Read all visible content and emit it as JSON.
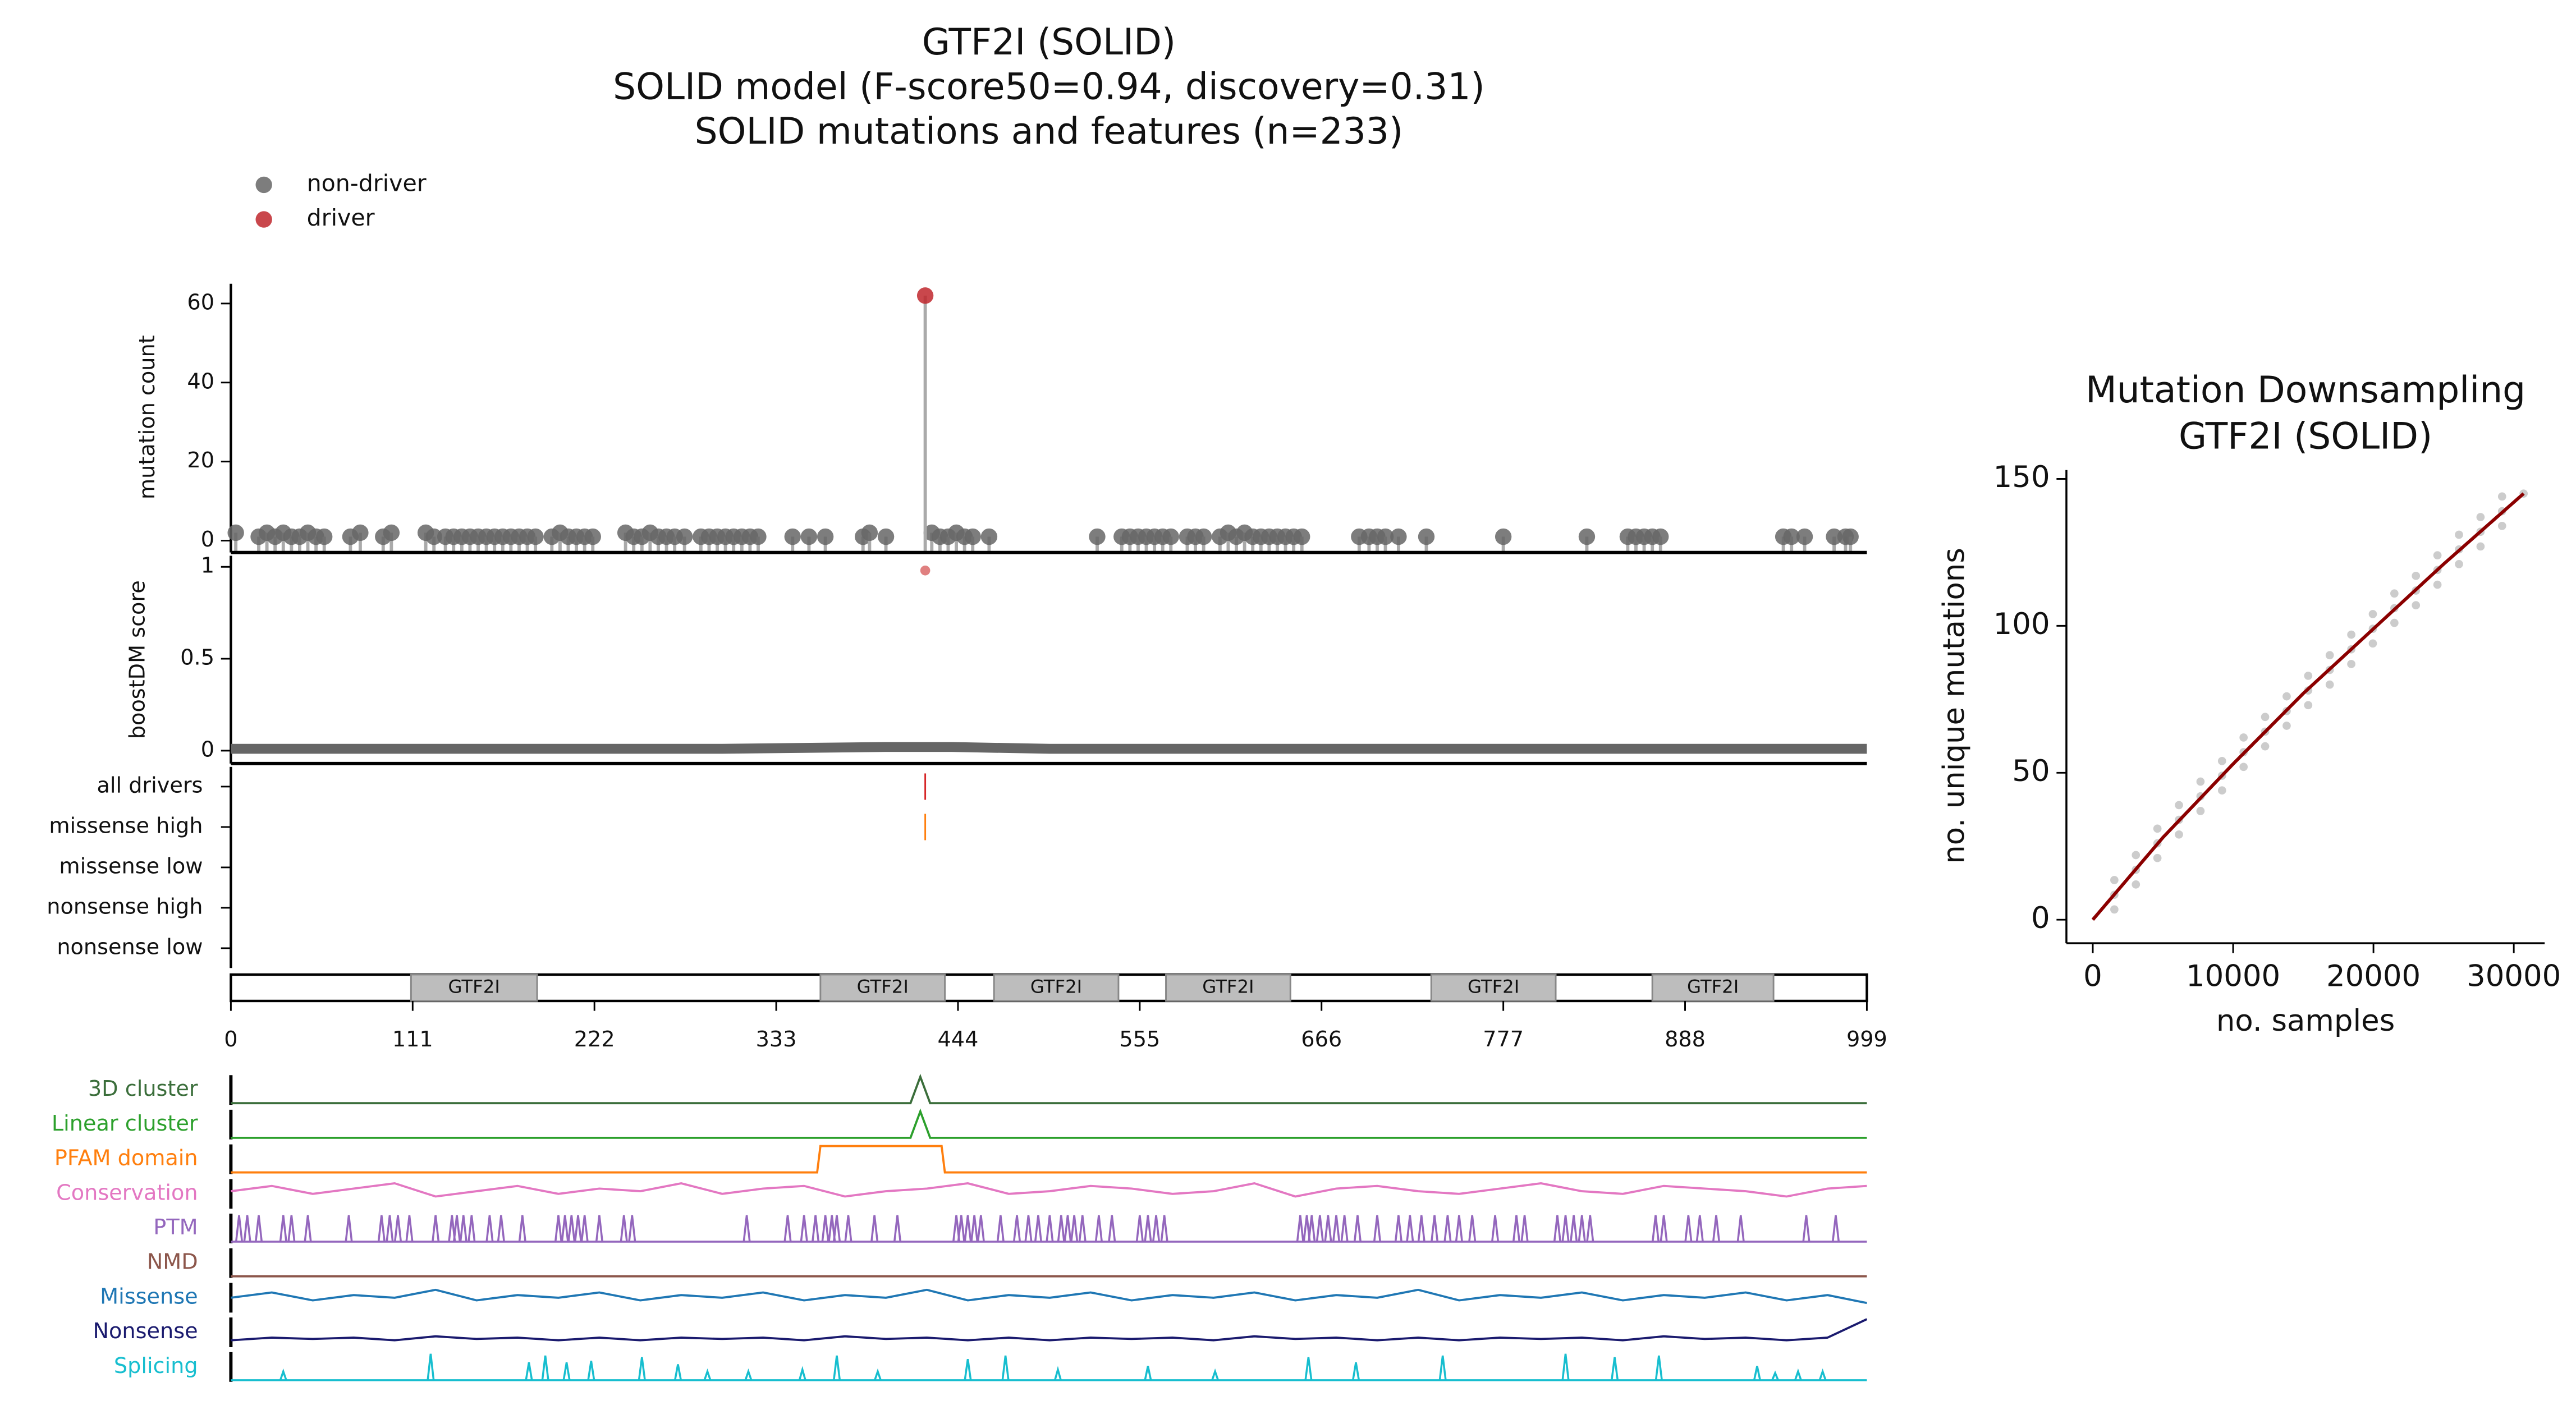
{
  "chart_data": [
    {
      "type": "lollipop",
      "title": [
        "GTF2I (SOLID)",
        "SOLID model (F-score50=0.94, discovery=0.31)",
        "SOLID mutations and features (n=233)"
      ],
      "y_label": "mutation count",
      "xlim": [
        0,
        999
      ],
      "ylim": [
        -3,
        65
      ],
      "yticks": [
        0,
        20,
        40,
        60
      ],
      "series": [
        {
          "name": "non-driver",
          "color": "#666666",
          "x": [
            3,
            17,
            22,
            27,
            32,
            37,
            42,
            47,
            52,
            57,
            73,
            79,
            93,
            98,
            119,
            124,
            131,
            136,
            141,
            146,
            151,
            156,
            161,
            166,
            171,
            176,
            181,
            186,
            196,
            201,
            206,
            211,
            216,
            221,
            241,
            246,
            251,
            256,
            261,
            266,
            271,
            277,
            287,
            292,
            297,
            302,
            307,
            312,
            317,
            322,
            343,
            353,
            363,
            386,
            390,
            400,
            428,
            433,
            438,
            443,
            448,
            453,
            463,
            529,
            544,
            549,
            554,
            559,
            564,
            569,
            574,
            584,
            589,
            594,
            604,
            609,
            614,
            619,
            624,
            629,
            634,
            639,
            644,
            649,
            654,
            689,
            695,
            700,
            705,
            713,
            730,
            777,
            828,
            853,
            858,
            863,
            868,
            873,
            948,
            953,
            961,
            979,
            986,
            989
          ],
          "values": [
            2,
            1,
            2,
            1,
            2,
            1,
            1,
            2,
            1,
            1,
            1,
            2,
            1,
            2,
            2,
            1,
            1,
            1,
            1,
            1,
            1,
            1,
            1,
            1,
            1,
            1,
            1,
            1,
            1,
            2,
            1,
            1,
            1,
            1,
            2,
            1,
            1,
            2,
            1,
            1,
            1,
            1,
            1,
            1,
            1,
            1,
            1,
            1,
            1,
            1,
            1,
            1,
            1,
            1,
            2,
            1,
            2,
            1,
            1,
            2,
            1,
            1,
            1,
            1,
            1,
            1,
            1,
            1,
            1,
            1,
            1,
            1,
            1,
            1,
            1,
            2,
            1,
            2,
            1,
            1,
            1,
            1,
            1,
            1,
            1,
            1,
            1,
            1,
            1,
            1,
            1,
            1,
            1,
            1,
            1,
            1,
            1,
            1,
            1,
            1,
            1,
            1,
            1,
            1
          ]
        },
        {
          "name": "driver",
          "color": "#c0272d",
          "x": [
            424
          ],
          "values": [
            62
          ]
        }
      ]
    },
    {
      "type": "score",
      "y_label": "boostDM score",
      "xlim": [
        0,
        999
      ],
      "ylim": [
        -0.07,
        1.06
      ],
      "yticks": [
        0,
        0.5,
        1
      ],
      "series": [
        {
          "marker": "band",
          "color": "#666666",
          "x": [
            0,
            100,
            200,
            300,
            350,
            400,
            420,
            440,
            500,
            600,
            700,
            800,
            900,
            999
          ],
          "values": [
            0.01,
            0.01,
            0.01,
            0.01,
            0.015,
            0.02,
            0.02,
            0.02,
            0.01,
            0.01,
            0.01,
            0.01,
            0.01,
            0.01
          ]
        },
        {
          "marker": "dot",
          "color": "#e08080",
          "x": [
            424
          ],
          "values": [
            0.98
          ]
        }
      ]
    },
    {
      "type": "tracks",
      "xlim": [
        0,
        999
      ],
      "categories": [
        "all drivers",
        "missense high",
        "missense low",
        "nonsense high",
        "nonsense low"
      ],
      "series": [
        {
          "color": "#d62728",
          "x": [
            424
          ]
        },
        {
          "color": "#ff7f0e",
          "x": [
            424
          ]
        },
        {
          "x": []
        },
        {
          "x": []
        },
        {
          "x": []
        }
      ]
    },
    {
      "type": "domains",
      "xlim": [
        0,
        999
      ],
      "xticks": [
        0,
        111,
        222,
        333,
        444,
        555,
        666,
        777,
        888,
        999
      ],
      "labels": [
        "GTF2I",
        "GTF2I",
        "GTF2I",
        "GTF2I",
        "GTF2I",
        "GTF2I"
      ],
      "starts": [
        110,
        360,
        466,
        571,
        733,
        868
      ],
      "ends": [
        187,
        436,
        542,
        647,
        809,
        942
      ]
    },
    {
      "type": "features",
      "xlim": [
        0,
        999
      ],
      "tracks": [
        {
          "name": "3D cluster",
          "color": "#3b6e3b",
          "style": "line",
          "x": [
            0,
            415,
            421,
            427,
            999
          ],
          "values": [
            0,
            0,
            1,
            0,
            0
          ]
        },
        {
          "name": "Linear cluster",
          "color": "#2ca02c",
          "style": "line",
          "x": [
            0,
            415,
            421,
            427,
            999
          ],
          "values": [
            0,
            0,
            1,
            0,
            0
          ]
        },
        {
          "name": "PFAM domain",
          "color": "#ff7f0e",
          "style": "line",
          "x": [
            0,
            358,
            360,
            434,
            436,
            999
          ],
          "values": [
            0,
            0,
            1,
            1,
            0,
            0
          ]
        },
        {
          "name": "Conservation",
          "color": "#e377c2",
          "style": "line",
          "x": [
            0,
            25,
            50,
            75,
            100,
            125,
            150,
            175,
            200,
            225,
            250,
            275,
            300,
            325,
            350,
            375,
            400,
            425,
            450,
            475,
            500,
            525,
            550,
            575,
            600,
            625,
            650,
            675,
            700,
            725,
            750,
            775,
            800,
            825,
            850,
            875,
            900,
            925,
            950,
            975,
            999
          ],
          "values": [
            0.6,
            0.8,
            0.5,
            0.7,
            0.9,
            0.4,
            0.6,
            0.8,
            0.5,
            0.7,
            0.6,
            0.9,
            0.5,
            0.7,
            0.8,
            0.4,
            0.6,
            0.7,
            0.9,
            0.5,
            0.6,
            0.8,
            0.7,
            0.5,
            0.6,
            0.9,
            0.4,
            0.7,
            0.8,
            0.6,
            0.5,
            0.7,
            0.9,
            0.6,
            0.5,
            0.8,
            0.7,
            0.6,
            0.4,
            0.7,
            0.8
          ]
        },
        {
          "name": "PTM",
          "color": "#9467bd",
          "style": "spikes",
          "x": [
            5,
            10,
            17,
            32,
            37,
            47,
            72,
            92,
            97,
            102,
            109,
            125,
            135,
            138,
            142,
            147,
            158,
            165,
            178,
            200,
            204,
            208,
            212,
            216,
            225,
            240,
            245,
            315,
            340,
            350,
            357,
            363,
            367,
            370,
            377,
            393,
            407,
            443,
            446,
            450,
            454,
            458,
            470,
            480,
            487,
            493,
            500,
            507,
            511,
            515,
            520,
            530,
            538,
            555,
            560,
            565,
            570,
            653,
            657,
            660,
            665,
            670,
            675,
            680,
            688,
            700,
            713,
            720,
            727,
            735,
            743,
            750,
            758,
            772,
            785,
            790,
            810,
            815,
            820,
            825,
            830,
            870,
            875,
            890,
            897,
            907,
            922,
            962,
            980
          ],
          "values": [
            1,
            1,
            1,
            1,
            1,
            1,
            1,
            1,
            1,
            1,
            1,
            1,
            1,
            1,
            1,
            1,
            1,
            1,
            1,
            1,
            1,
            1,
            1,
            1,
            1,
            1,
            1,
            1,
            1,
            1,
            1,
            1,
            1,
            1,
            1,
            1,
            1,
            1,
            1,
            1,
            1,
            1,
            1,
            1,
            1,
            1,
            1,
            1,
            1,
            1,
            1,
            1,
            1,
            1,
            1,
            1,
            1,
            1,
            1,
            1,
            1,
            1,
            1,
            1,
            1,
            1,
            1,
            1,
            1,
            1,
            1,
            1,
            1,
            1,
            1,
            1,
            1,
            1,
            1,
            1,
            1,
            1,
            1,
            1,
            1,
            1,
            1,
            1,
            1
          ]
        },
        {
          "name": "NMD",
          "color": "#8c564b",
          "style": "line",
          "x": [
            0,
            999
          ],
          "values": [
            0,
            0
          ]
        },
        {
          "name": "Missense",
          "color": "#1f77b4",
          "style": "line",
          "x": [
            0,
            25,
            50,
            75,
            100,
            125,
            150,
            175,
            200,
            225,
            250,
            275,
            300,
            325,
            350,
            375,
            400,
            425,
            450,
            475,
            500,
            525,
            550,
            575,
            600,
            625,
            650,
            675,
            700,
            725,
            750,
            775,
            800,
            825,
            850,
            875,
            900,
            925,
            950,
            975,
            999
          ],
          "values": [
            0.5,
            0.7,
            0.4,
            0.6,
            0.5,
            0.8,
            0.4,
            0.6,
            0.5,
            0.7,
            0.4,
            0.6,
            0.5,
            0.7,
            0.4,
            0.6,
            0.5,
            0.8,
            0.4,
            0.6,
            0.5,
            0.7,
            0.4,
            0.6,
            0.5,
            0.7,
            0.4,
            0.6,
            0.5,
            0.8,
            0.4,
            0.6,
            0.5,
            0.7,
            0.4,
            0.6,
            0.5,
            0.7,
            0.4,
            0.6,
            0.3
          ]
        },
        {
          "name": "Nonsense",
          "color": "#1a1a6e",
          "style": "line",
          "x": [
            0,
            25,
            50,
            75,
            100,
            125,
            150,
            175,
            200,
            225,
            250,
            275,
            300,
            325,
            350,
            375,
            400,
            425,
            450,
            475,
            500,
            525,
            550,
            575,
            600,
            625,
            650,
            675,
            700,
            725,
            750,
            775,
            800,
            825,
            850,
            875,
            900,
            925,
            950,
            975,
            999
          ],
          "values": [
            0.2,
            0.3,
            0.25,
            0.3,
            0.2,
            0.35,
            0.25,
            0.3,
            0.2,
            0.3,
            0.2,
            0.3,
            0.25,
            0.3,
            0.2,
            0.35,
            0.25,
            0.3,
            0.2,
            0.3,
            0.2,
            0.3,
            0.25,
            0.3,
            0.2,
            0.35,
            0.25,
            0.3,
            0.2,
            0.3,
            0.2,
            0.3,
            0.25,
            0.3,
            0.2,
            0.35,
            0.25,
            0.3,
            0.2,
            0.3,
            1
          ]
        },
        {
          "name": "Splicing",
          "color": "#17becf",
          "style": "spikes",
          "x": [
            32,
            122,
            182,
            192,
            205,
            220,
            251,
            273,
            291,
            316,
            349,
            370,
            395,
            450,
            473,
            505,
            560,
            601,
            658,
            687,
            740,
            815,
            845,
            872,
            932,
            943,
            957,
            972
          ],
          "values": [
            0.33,
            1,
            0.67,
            0.93,
            0.67,
            0.73,
            0.87,
            0.6,
            0.33,
            0.33,
            0.4,
            0.93,
            0.33,
            0.8,
            0.93,
            0.4,
            0.53,
            0.33,
            0.87,
            0.67,
            0.93,
            1,
            0.87,
            0.93,
            0.53,
            0.27,
            0.33,
            0.33
          ]
        }
      ]
    },
    {
      "type": "scatter",
      "title": [
        "Mutation Downsampling",
        "GTF2I (SOLID)"
      ],
      "x_label": "no. samples",
      "y_label": "no. unique mutations",
      "xlim": [
        -1880,
        32200
      ],
      "ylim": [
        -8,
        153
      ],
      "xticks": [
        0,
        10000,
        20000,
        30000
      ],
      "yticks": [
        0,
        50,
        100,
        150
      ],
      "points": {
        "color": "#9a9a9a",
        "x": [
          1535,
          1535,
          1535,
          3070,
          3070,
          3070,
          4605,
          4605,
          4605,
          6140,
          6140,
          6140,
          7675,
          7675,
          7675,
          9210,
          9210,
          9210,
          10745,
          10745,
          10745,
          12280,
          12280,
          12280,
          13815,
          13815,
          13815,
          15350,
          15350,
          15350,
          16885,
          16885,
          16885,
          18420,
          18420,
          18420,
          19955,
          19955,
          19955,
          21490,
          21490,
          21490,
          23025,
          23025,
          23025,
          24560,
          24560,
          24560,
          26095,
          26095,
          26095,
          27630,
          27630,
          27630,
          29165,
          29165,
          29165,
          30700
        ],
        "values": [
          3.5,
          8.5,
          13.5,
          12,
          17,
          22,
          21,
          26,
          31,
          29,
          34,
          39,
          37,
          42,
          47,
          44,
          49,
          54,
          52,
          57,
          62,
          59,
          64,
          69,
          66,
          71,
          76,
          73,
          78,
          83,
          80,
          85,
          90,
          87,
          92,
          97,
          94,
          99,
          104,
          101,
          106,
          111,
          107,
          112,
          117,
          114,
          119,
          124,
          121,
          126,
          131,
          127,
          132,
          137,
          134,
          139,
          144,
          145
        ]
      },
      "fit": {
        "color": "#8b0000",
        "x": [
          0,
          5000,
          10000,
          15000,
          20000,
          25000,
          30700
        ],
        "values": [
          0,
          28,
          53,
          77,
          99,
          121,
          145
        ]
      }
    }
  ]
}
